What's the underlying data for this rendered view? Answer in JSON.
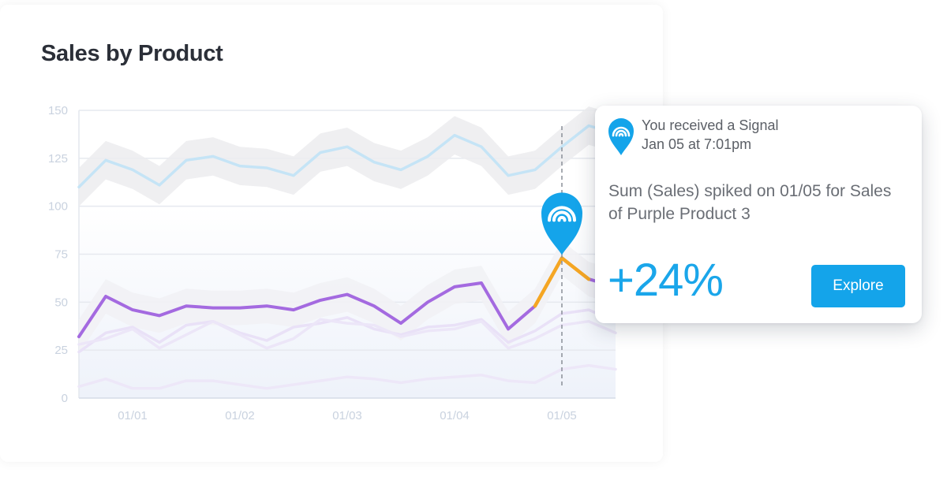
{
  "card": {
    "title": "Sales by Product"
  },
  "chart_data": {
    "type": "line",
    "title": "Sales by Product",
    "xlabel": "",
    "ylabel": "",
    "ylim": [
      0,
      150
    ],
    "yticks": [
      0,
      25,
      50,
      75,
      100,
      125,
      150
    ],
    "x": [
      0.5,
      0.75,
      1,
      1.25,
      1.5,
      1.75,
      2,
      2.25,
      2.5,
      2.75,
      3,
      3.25,
      3.5,
      3.75,
      4,
      4.25,
      4.5,
      4.75,
      5,
      5.25,
      5.5
    ],
    "xticks": [
      1,
      2,
      3,
      4,
      5
    ],
    "xtick_labels": [
      "01/01",
      "01/02",
      "01/03",
      "01/04",
      "01/05"
    ],
    "grid": true,
    "series": [
      {
        "color": "#c5e4f6",
        "band_color": "#ececef",
        "band": 10,
        "values": [
          110,
          124,
          119,
          111,
          124,
          126,
          121,
          120,
          116,
          128,
          131,
          123,
          119,
          126,
          137,
          131,
          116,
          119,
          131,
          142,
          138
        ]
      },
      {
        "color": "#a46ae0",
        "band_color": "#f1f1f4",
        "band": 9,
        "values": [
          32,
          53,
          46,
          43,
          48,
          47,
          47,
          48,
          46,
          51,
          54,
          48,
          39,
          50,
          58,
          60,
          36,
          48,
          73,
          62,
          58
        ]
      },
      {
        "color": "#e9e1f7",
        "band": 0,
        "values": [
          24,
          34,
          37,
          29,
          38,
          40,
          34,
          30,
          37,
          39,
          42,
          36,
          33,
          37,
          38,
          41,
          29,
          35,
          44,
          46,
          40
        ]
      },
      {
        "color": "#ece6f8",
        "band": 0,
        "values": [
          28,
          31,
          36,
          26,
          33,
          40,
          33,
          26,
          31,
          41,
          39,
          38,
          32,
          35,
          36,
          40,
          26,
          31,
          38,
          40,
          34
        ]
      },
      {
        "color": "#ede7f8",
        "band": 0,
        "values": [
          6,
          10,
          5,
          5,
          9,
          9,
          7,
          5,
          7,
          9,
          11,
          10,
          8,
          10,
          11,
          12,
          9,
          8,
          15,
          17,
          15
        ]
      }
    ],
    "highlight": {
      "series_index": 1,
      "from_x": 4.75,
      "to_x": 5.25,
      "color": "#f5a623"
    },
    "marker": {
      "x": 5,
      "value": 73,
      "color": "#14a4ea"
    }
  },
  "signal": {
    "icon": "signal-pin-icon",
    "heading": "You received a Signal",
    "time": "Jan 05 at 7:01pm",
    "message": "Sum (Sales) spiked on 01/05 for Sales of Purple Product 3",
    "change": "+24%",
    "button_label": "Explore",
    "accent": "#14a4ea"
  }
}
